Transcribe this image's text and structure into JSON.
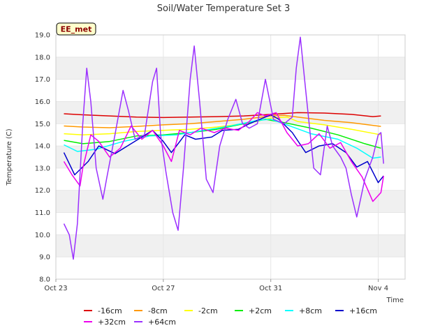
{
  "chart_data": {
    "type": "line",
    "title": "Soil/Water Temperature Set 3",
    "xlabel": "Time",
    "ylabel": "Temperature (C)",
    "badge": "EE_met",
    "ylim": [
      8.0,
      19.0
    ],
    "yticks": [
      "8.0",
      "9.0",
      "10.0",
      "11.0",
      "12.0",
      "13.0",
      "14.0",
      "15.0",
      "16.0",
      "17.0",
      "18.0",
      "19.0"
    ],
    "xlim": [
      0,
      13
    ],
    "xticks": [
      {
        "x": 0,
        "label": "Oct 23"
      },
      {
        "x": 4,
        "label": "Oct 27"
      },
      {
        "x": 8,
        "label": "Oct 31"
      },
      {
        "x": 12,
        "label": "Nov 4"
      }
    ],
    "grid": "horizontal bands",
    "legend_position": "bottom",
    "series": [
      {
        "name": "-16cm",
        "color": "#dd0000",
        "points": [
          [
            0.3,
            15.45
          ],
          [
            1,
            15.4
          ],
          [
            2,
            15.35
          ],
          [
            3,
            15.3
          ],
          [
            4,
            15.28
          ],
          [
            5,
            15.3
          ],
          [
            6,
            15.32
          ],
          [
            7,
            15.35
          ],
          [
            8,
            15.42
          ],
          [
            9,
            15.5
          ],
          [
            10,
            15.48
          ],
          [
            11,
            15.42
          ],
          [
            11.8,
            15.32
          ],
          [
            12.1,
            15.35
          ]
        ]
      },
      {
        "name": "-8cm",
        "color": "#ff9900",
        "points": [
          [
            0.3,
            14.9
          ],
          [
            1,
            14.85
          ],
          [
            2,
            14.82
          ],
          [
            3,
            14.88
          ],
          [
            4,
            14.95
          ],
          [
            5,
            15.0
          ],
          [
            6,
            15.1
          ],
          [
            7,
            15.2
          ],
          [
            8,
            15.35
          ],
          [
            8.5,
            15.38
          ],
          [
            9,
            15.3
          ],
          [
            10,
            15.15
          ],
          [
            11,
            15.05
          ],
          [
            12.1,
            14.88
          ]
        ]
      },
      {
        "name": "-2cm",
        "color": "#ffff00",
        "points": [
          [
            0.3,
            14.55
          ],
          [
            1,
            14.5
          ],
          [
            2,
            14.55
          ],
          [
            3,
            14.65
          ],
          [
            4,
            14.7
          ],
          [
            5,
            14.75
          ],
          [
            6,
            14.85
          ],
          [
            7,
            15.0
          ],
          [
            8,
            15.25
          ],
          [
            8.6,
            15.3
          ],
          [
            9,
            15.1
          ],
          [
            10,
            14.95
          ],
          [
            11,
            14.75
          ],
          [
            12.1,
            14.5
          ]
        ]
      },
      {
        "name": "+2cm",
        "color": "#00ee00",
        "points": [
          [
            0.3,
            14.25
          ],
          [
            1,
            14.1
          ],
          [
            2,
            14.2
          ],
          [
            3,
            14.45
          ],
          [
            4,
            14.5
          ],
          [
            5,
            14.6
          ],
          [
            6,
            14.75
          ],
          [
            7,
            15.0
          ],
          [
            7.8,
            15.2
          ],
          [
            8.5,
            15.05
          ],
          [
            9.5,
            14.8
          ],
          [
            10.5,
            14.5
          ],
          [
            11.5,
            14.1
          ],
          [
            12.1,
            13.9
          ]
        ]
      },
      {
        "name": "+8cm",
        "color": "#00ffff",
        "points": [
          [
            0.3,
            14.05
          ],
          [
            0.8,
            13.75
          ],
          [
            1.5,
            13.85
          ],
          [
            2.5,
            14.2
          ],
          [
            3.5,
            14.45
          ],
          [
            4.5,
            14.5
          ],
          [
            5.5,
            14.7
          ],
          [
            6.5,
            14.9
          ],
          [
            7.5,
            15.15
          ],
          [
            8,
            15.2
          ],
          [
            8.6,
            14.95
          ],
          [
            9.5,
            14.55
          ],
          [
            10.5,
            14.3
          ],
          [
            11.2,
            13.9
          ],
          [
            11.8,
            13.45
          ],
          [
            12.1,
            13.5
          ]
        ]
      },
      {
        "name": "+16cm",
        "color": "#0000cc",
        "points": [
          [
            0.3,
            13.7
          ],
          [
            0.7,
            12.7
          ],
          [
            1.2,
            13.3
          ],
          [
            1.6,
            14.0
          ],
          [
            2.2,
            13.65
          ],
          [
            2.8,
            14.1
          ],
          [
            3.2,
            14.4
          ],
          [
            3.6,
            14.7
          ],
          [
            4.0,
            14.2
          ],
          [
            4.3,
            13.7
          ],
          [
            4.8,
            14.5
          ],
          [
            5.2,
            14.3
          ],
          [
            5.8,
            14.4
          ],
          [
            6.2,
            14.7
          ],
          [
            6.8,
            14.75
          ],
          [
            7.2,
            15.0
          ],
          [
            7.6,
            15.2
          ],
          [
            8.0,
            15.4
          ],
          [
            8.3,
            15.2
          ],
          [
            8.8,
            14.6
          ],
          [
            9.3,
            13.7
          ],
          [
            9.8,
            14.0
          ],
          [
            10.3,
            14.1
          ],
          [
            10.8,
            13.7
          ],
          [
            11.2,
            13.05
          ],
          [
            11.6,
            13.3
          ],
          [
            12.0,
            12.35
          ],
          [
            12.2,
            12.65
          ]
        ]
      },
      {
        "name": "+32cm",
        "color": "#ee00ee",
        "points": [
          [
            0.3,
            13.3
          ],
          [
            0.6,
            12.7
          ],
          [
            0.9,
            12.2
          ],
          [
            1.0,
            13.0
          ],
          [
            1.3,
            14.5
          ],
          [
            1.6,
            14.2
          ],
          [
            2.0,
            13.5
          ],
          [
            2.4,
            13.9
          ],
          [
            2.8,
            14.9
          ],
          [
            3.2,
            14.3
          ],
          [
            3.6,
            14.7
          ],
          [
            4.0,
            14.0
          ],
          [
            4.3,
            13.3
          ],
          [
            4.6,
            14.7
          ],
          [
            5.0,
            14.5
          ],
          [
            5.4,
            14.8
          ],
          [
            5.9,
            14.6
          ],
          [
            6.3,
            14.8
          ],
          [
            6.8,
            14.7
          ],
          [
            7.2,
            15.1
          ],
          [
            7.5,
            15.5
          ],
          [
            7.8,
            15.35
          ],
          [
            8.2,
            15.5
          ],
          [
            8.6,
            14.6
          ],
          [
            9.0,
            14.0
          ],
          [
            9.4,
            14.1
          ],
          [
            9.8,
            14.55
          ],
          [
            10.2,
            13.9
          ],
          [
            10.6,
            14.15
          ],
          [
            11.0,
            13.3
          ],
          [
            11.4,
            12.6
          ],
          [
            11.8,
            11.5
          ],
          [
            12.1,
            11.9
          ],
          [
            12.2,
            12.65
          ]
        ]
      },
      {
        "name": "+64cm",
        "color": "#9b30ff",
        "points": [
          [
            0.3,
            10.5
          ],
          [
            0.5,
            10.0
          ],
          [
            0.65,
            8.9
          ],
          [
            0.8,
            10.5
          ],
          [
            1.0,
            15.0
          ],
          [
            1.15,
            17.5
          ],
          [
            1.3,
            16.0
          ],
          [
            1.5,
            13.0
          ],
          [
            1.75,
            11.6
          ],
          [
            1.9,
            12.6
          ],
          [
            2.2,
            14.5
          ],
          [
            2.5,
            16.5
          ],
          [
            2.7,
            15.6
          ],
          [
            2.95,
            14.3
          ],
          [
            3.3,
            14.5
          ],
          [
            3.6,
            16.9
          ],
          [
            3.75,
            17.5
          ],
          [
            3.9,
            14.5
          ],
          [
            4.1,
            12.8
          ],
          [
            4.35,
            11.0
          ],
          [
            4.55,
            10.2
          ],
          [
            4.75,
            13.0
          ],
          [
            5.0,
            17.0
          ],
          [
            5.15,
            18.5
          ],
          [
            5.35,
            16.0
          ],
          [
            5.6,
            12.5
          ],
          [
            5.85,
            11.9
          ],
          [
            6.1,
            14.0
          ],
          [
            6.4,
            15.2
          ],
          [
            6.7,
            16.1
          ],
          [
            6.95,
            15.0
          ],
          [
            7.2,
            14.8
          ],
          [
            7.5,
            15.0
          ],
          [
            7.8,
            17.0
          ],
          [
            8.1,
            15.2
          ],
          [
            8.5,
            15.0
          ],
          [
            8.8,
            15.3
          ],
          [
            8.95,
            17.5
          ],
          [
            9.1,
            18.9
          ],
          [
            9.3,
            16.5
          ],
          [
            9.6,
            13.0
          ],
          [
            9.85,
            12.7
          ],
          [
            10.1,
            14.9
          ],
          [
            10.3,
            14.0
          ],
          [
            10.6,
            13.5
          ],
          [
            10.8,
            13.0
          ],
          [
            11.0,
            11.8
          ],
          [
            11.2,
            10.8
          ],
          [
            11.5,
            12.5
          ],
          [
            11.8,
            13.5
          ],
          [
            12.0,
            14.5
          ],
          [
            12.1,
            14.6
          ],
          [
            12.2,
            13.2
          ]
        ]
      }
    ]
  }
}
